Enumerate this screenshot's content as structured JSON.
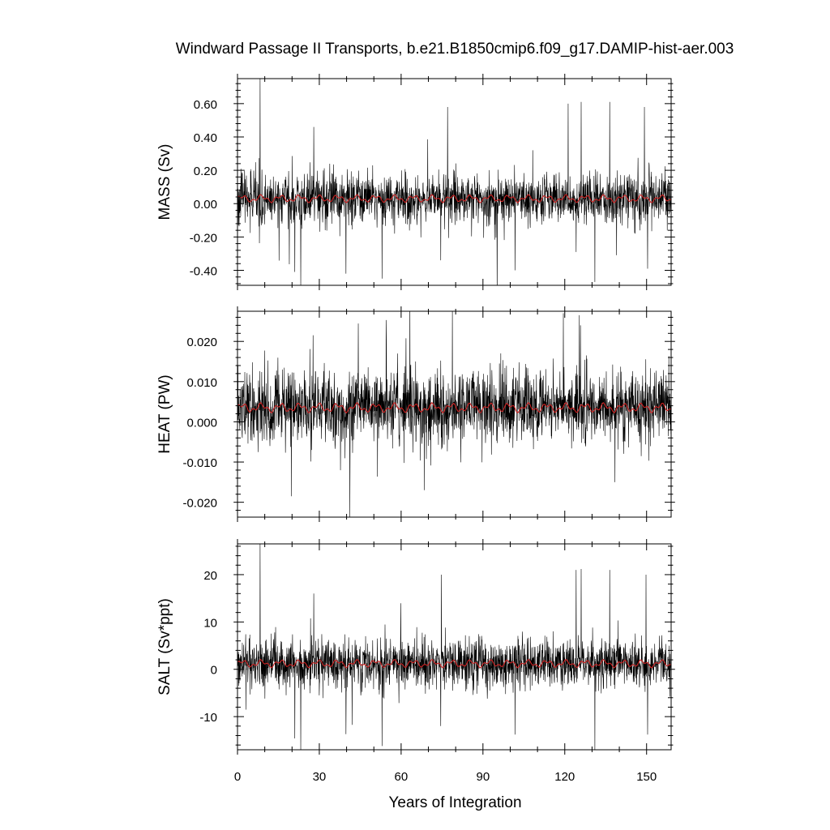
{
  "title": "Windward Passage II Transports, b.e21.B1850cmip6.f09_g17.DAMIP-hist-aer.003",
  "colors": {
    "raw": "#000000",
    "smoothed": "#cc2222",
    "frame": "#000000",
    "background": "#ffffff"
  },
  "chart_data": [
    {
      "type": "line",
      "panel": "mass",
      "ylabel": "MASS (Sv)",
      "xlabel": "",
      "xlim": [
        0,
        159
      ],
      "ylim": [
        -0.49,
        0.75
      ],
      "xticks": [
        0,
        30,
        60,
        90,
        120,
        150
      ],
      "yticks": [
        -0.4,
        -0.2,
        0.0,
        0.2,
        0.4,
        0.6
      ],
      "ytick_labels": [
        "-0.40",
        "-0.20",
        "0.00",
        "0.20",
        "0.40",
        "0.60"
      ],
      "series": [
        {
          "kind": "raw",
          "mean": 0.03,
          "std": 0.075,
          "amplitude": 0.01
        },
        {
          "kind": "smoothed",
          "mean": 0.03,
          "amplitude": 0.025
        }
      ],
      "spikes": [
        {
          "x": 8.3,
          "y": 0.75
        },
        {
          "x": 23.2,
          "y": -0.49
        },
        {
          "x": 21.0,
          "y": -0.41
        },
        {
          "x": 28.0,
          "y": 0.46
        },
        {
          "x": 39.8,
          "y": -0.42
        },
        {
          "x": 53.0,
          "y": -0.45
        },
        {
          "x": 74.5,
          "y": -0.34
        },
        {
          "x": 77.0,
          "y": 0.58
        },
        {
          "x": 101.8,
          "y": -0.4
        },
        {
          "x": 121.2,
          "y": 0.6
        },
        {
          "x": 124.2,
          "y": -0.29
        },
        {
          "x": 126.0,
          "y": 0.61
        },
        {
          "x": 131.0,
          "y": -0.47
        },
        {
          "x": 136.5,
          "y": 0.61
        },
        {
          "x": 149.2,
          "y": 0.58
        },
        {
          "x": 150.4,
          "y": -0.39
        }
      ]
    },
    {
      "type": "line",
      "panel": "heat",
      "ylabel": "HEAT (PW)",
      "xlabel": "",
      "xlim": [
        0,
        159
      ],
      "ylim": [
        -0.0237,
        0.0275
      ],
      "xticks": [
        0,
        30,
        60,
        90,
        120,
        150
      ],
      "yticks": [
        -0.02,
        -0.01,
        0.0,
        0.01,
        0.02
      ],
      "ytick_labels": [
        "-0.020",
        "-0.010",
        "0.000",
        "0.010",
        "0.020"
      ],
      "series": [
        {
          "kind": "raw",
          "mean": 0.0035,
          "std": 0.0045,
          "amplitude": 0.0005
        },
        {
          "kind": "smoothed",
          "mean": 0.0035,
          "amplitude": 0.0013
        }
      ],
      "spikes": [
        {
          "x": 41.2,
          "y": -0.0237
        },
        {
          "x": 54.5,
          "y": 0.0253
        },
        {
          "x": 78.8,
          "y": 0.0275
        },
        {
          "x": 119.5,
          "y": 0.027
        },
        {
          "x": 19.8,
          "y": -0.0185
        },
        {
          "x": 68.5,
          "y": -0.017
        },
        {
          "x": 125.8,
          "y": 0.024
        },
        {
          "x": 138.4,
          "y": -0.015
        }
      ]
    },
    {
      "type": "line",
      "panel": "salt",
      "ylabel": "SALT (Sv*ppt)",
      "xlabel": "Years of Integration",
      "xlim": [
        0,
        159
      ],
      "ylim": [
        -17,
        26.5
      ],
      "xticks": [
        0,
        30,
        60,
        90,
        120,
        150
      ],
      "xtick_labels": [
        "0",
        "30",
        "60",
        "90",
        "120",
        "150"
      ],
      "yticks": [
        -10,
        0,
        10,
        20
      ],
      "ytick_labels": [
        "-10",
        "0",
        "10",
        "20"
      ],
      "series": [
        {
          "kind": "raw",
          "mean": 1.2,
          "std": 2.6,
          "amplitude": 0.4
        },
        {
          "kind": "smoothed",
          "mean": 1.2,
          "amplitude": 0.9
        }
      ],
      "spikes": [
        {
          "x": 8.3,
          "y": 26.5
        },
        {
          "x": 23.2,
          "y": -17
        },
        {
          "x": 21.0,
          "y": -14.6
        },
        {
          "x": 28.0,
          "y": 16.0
        },
        {
          "x": 39.8,
          "y": -13.7
        },
        {
          "x": 53.0,
          "y": -16.2
        },
        {
          "x": 74.5,
          "y": -12.0
        },
        {
          "x": 74.8,
          "y": 20.0
        },
        {
          "x": 101.8,
          "y": -13.8
        },
        {
          "x": 124.2,
          "y": 21.0
        },
        {
          "x": 126.0,
          "y": 21.2
        },
        {
          "x": 131.0,
          "y": -17
        },
        {
          "x": 136.5,
          "y": 21.0
        },
        {
          "x": 149.8,
          "y": 20.0
        },
        {
          "x": 150.4,
          "y": -13.8
        }
      ]
    }
  ]
}
